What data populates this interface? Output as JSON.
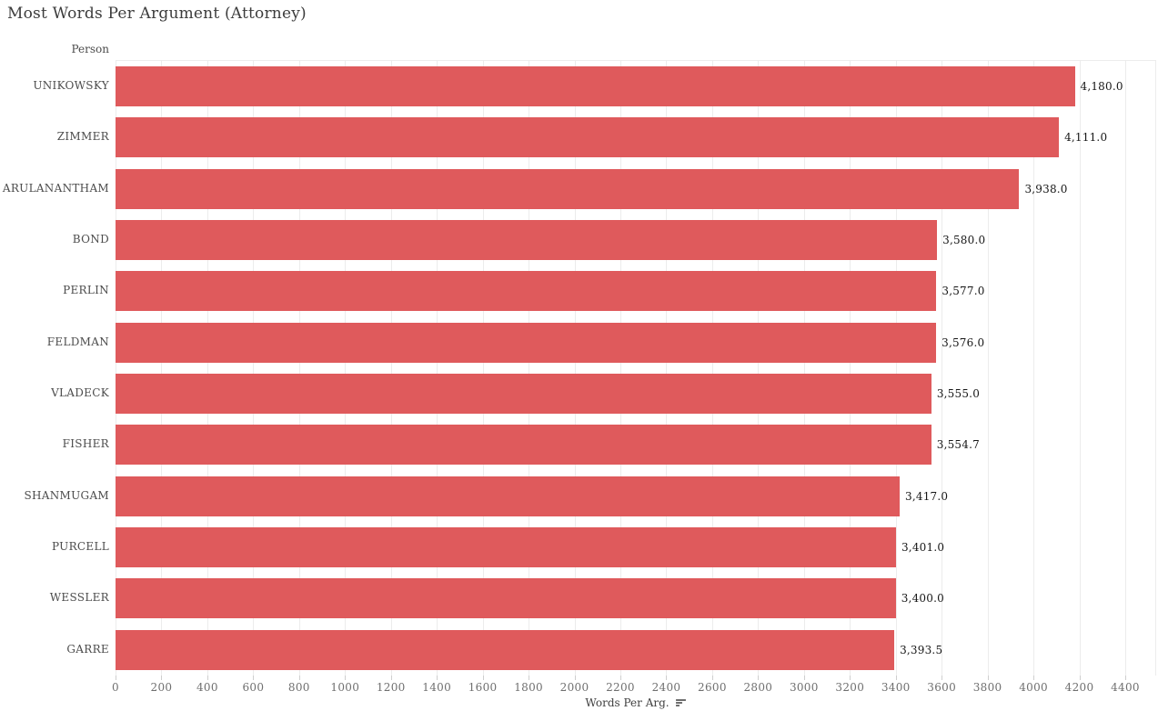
{
  "colors": {
    "bar": "#df5a5c",
    "grid": "#ececec",
    "tick": "#cfcfcf",
    "title_text": "#3c3c3c",
    "label_text": "#4c4c4c",
    "value_text": "#161616",
    "axis_text": "#6f6f6f"
  },
  "chart_data": {
    "type": "bar",
    "orientation": "horizontal",
    "title": "Most Words Per Argument (Attorney)",
    "y_axis_header": "Person",
    "xlabel": "Words Per Arg.",
    "sort_indicator": "sort-descending-icon",
    "categories": [
      "UNIKOWSKY",
      "ZIMMER",
      "ARULANANTHAM",
      "BOND",
      "PERLIN",
      "FELDMAN",
      "VLADECK",
      "FISHER",
      "SHANMUGAM",
      "PURCELL",
      "WESSLER",
      "GARRE"
    ],
    "values": [
      4180.0,
      4111.0,
      3938.0,
      3580.0,
      3577.0,
      3576.0,
      3555.0,
      3554.7,
      3417.0,
      3401.0,
      3400.0,
      3393.5
    ],
    "value_labels": [
      "4,180.0",
      "4,111.0",
      "3,938.0",
      "3,580.0",
      "3,577.0",
      "3,576.0",
      "3,555.0",
      "3,554.7",
      "3,417.0",
      "3,401.0",
      "3,400.0",
      "3,393.5"
    ],
    "x_ticks": [
      0,
      200,
      400,
      600,
      800,
      1000,
      1200,
      1400,
      1600,
      1800,
      2000,
      2200,
      2400,
      2600,
      2800,
      3000,
      3200,
      3400,
      3600,
      3800,
      4000,
      4200,
      4400
    ],
    "xlim": [
      0,
      4530
    ],
    "grid": true,
    "legend": false
  }
}
